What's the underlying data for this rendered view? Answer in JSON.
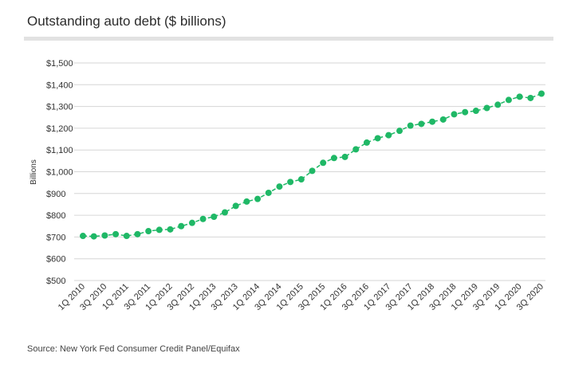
{
  "title": "Outstanding auto debt ($ billions)",
  "source": "Source: New York Fed Consumer Credit Panel/Equifax",
  "chart_data": {
    "type": "line",
    "title": "Outstanding auto debt ($ billions)",
    "ylabel": "Billions",
    "xlabel": "",
    "ylim": [
      500,
      1500
    ],
    "y_ticks": [
      500,
      600,
      700,
      800,
      900,
      1000,
      1100,
      1200,
      1300,
      1400,
      1500
    ],
    "y_tick_labels": [
      "$500",
      "$600",
      "$700",
      "$800",
      "$900",
      "$1,000",
      "$1,100",
      "$1,200",
      "$1,300",
      "$1,400",
      "$1,500"
    ],
    "x_tick_labels": [
      "1Q 2010",
      "3Q 2010",
      "1Q 2011",
      "3Q 2011",
      "1Q 2012",
      "3Q 2012",
      "1Q 2013",
      "3Q 2013",
      "1Q 2014",
      "3Q 2014",
      "1Q 2015",
      "3Q 2015",
      "1Q 2016",
      "3Q 2016",
      "1Q 2017",
      "3Q 2017",
      "1Q 2018",
      "3Q 2018",
      "1Q 2019",
      "3Q 2019",
      "1Q 2020",
      "3Q 2020"
    ],
    "x": [
      "1Q 2010",
      "2Q 2010",
      "3Q 2010",
      "4Q 2010",
      "1Q 2011",
      "2Q 2011",
      "3Q 2011",
      "4Q 2011",
      "1Q 2012",
      "2Q 2012",
      "3Q 2012",
      "4Q 2012",
      "1Q 2013",
      "2Q 2013",
      "3Q 2013",
      "4Q 2013",
      "1Q 2014",
      "2Q 2014",
      "3Q 2014",
      "4Q 2014",
      "1Q 2015",
      "2Q 2015",
      "3Q 2015",
      "4Q 2015",
      "1Q 2016",
      "2Q 2016",
      "3Q 2016",
      "4Q 2016",
      "1Q 2017",
      "2Q 2017",
      "3Q 2017",
      "4Q 2017",
      "1Q 2018",
      "2Q 2018",
      "3Q 2018",
      "4Q 2018",
      "1Q 2019",
      "2Q 2019",
      "3Q 2019",
      "4Q 2019",
      "1Q 2020",
      "2Q 2020",
      "3Q 2020"
    ],
    "series": [
      {
        "values": [
          705,
          703,
          707,
          713,
          705,
          713,
          727,
          733,
          735,
          750,
          765,
          783,
          793,
          813,
          843,
          863,
          875,
          903,
          932,
          953,
          965,
          1004,
          1041,
          1063,
          1068,
          1103,
          1134,
          1154,
          1168,
          1188,
          1212,
          1220,
          1230,
          1240,
          1264,
          1274,
          1280,
          1293,
          1308,
          1330,
          1345,
          1339,
          1359
        ]
      }
    ],
    "grid": true,
    "line_style": "dashed",
    "markers": "circle",
    "colors": {
      "line": "#1fb866",
      "grid": "#d6d6d6"
    }
  }
}
